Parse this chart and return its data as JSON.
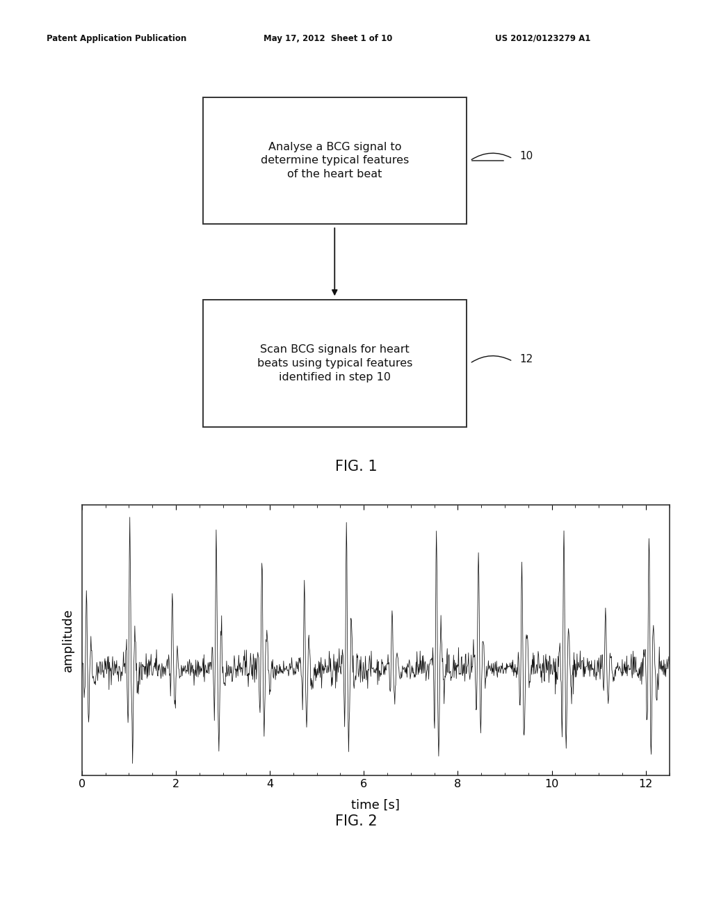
{
  "header_left": "Patent Application Publication",
  "header_mid": "May 17, 2012  Sheet 1 of 10",
  "header_right": "US 2012/0123279 A1",
  "box1_text": "Analyse a BCG signal to\ndetermine typical features\nof the heart beat",
  "box2_text": "Scan BCG signals for heart\nbeats using typical features\nidentified in step 10",
  "label1": "10",
  "label2": "12",
  "fig1_label": "FIG. 1",
  "fig2_label": "FIG. 2",
  "xlabel": "time [s]",
  "ylabel": "amplitude",
  "xlim": [
    0,
    12.5
  ],
  "xticks": [
    0,
    2,
    4,
    6,
    8,
    10,
    12
  ],
  "background_color": "#ffffff",
  "box_color": "#ffffff",
  "box_edge_color": "#333333",
  "text_color": "#111111",
  "signal_color": "#111111",
  "header_color": "#111111",
  "signal_seed": 42,
  "signal_n_points": 1300,
  "signal_duration": 12.5
}
